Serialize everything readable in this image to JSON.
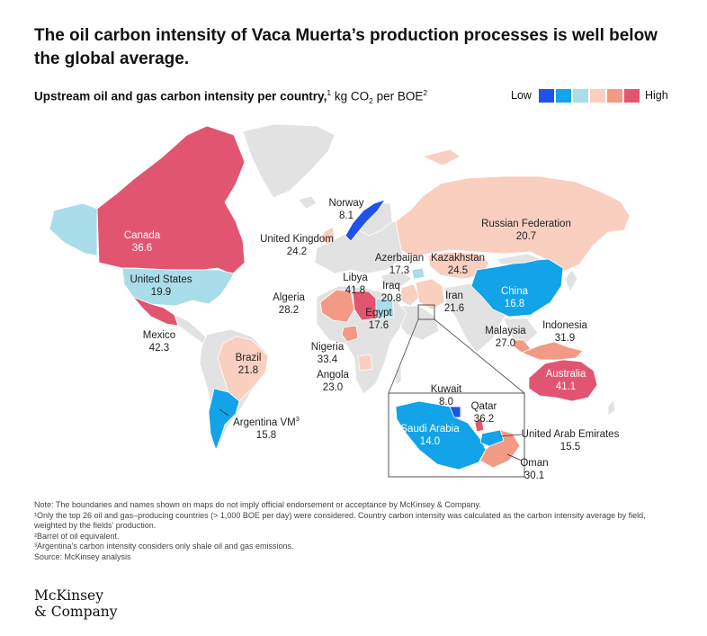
{
  "title": "The oil carbon intensity of Vaca Muerta’s production processes is well below the global average.",
  "subtitle": {
    "main": "Upstream oil and gas carbon intensity per country,",
    "fn": "1",
    "unit_a": " kg CO",
    "unit_sub": "2",
    "unit_b": " per BOE",
    "unit_fn": "2"
  },
  "legend": {
    "low": "Low",
    "high": "High",
    "colors": [
      "#2052e8",
      "#12a3e8",
      "#a8dde9",
      "#f9cfc0",
      "#f29a86",
      "#e25570"
    ]
  },
  "palette": {
    "base": "#e2e2e2",
    "border": "#ffffff"
  },
  "countries": [
    {
      "name": "Norway",
      "value": "8.1",
      "color": "#2052e8"
    },
    {
      "name": "Canada",
      "value": "36.6",
      "color": "#e25570"
    },
    {
      "name": "United Kingdom",
      "value": "24.2",
      "color": "#f9cfc0"
    },
    {
      "name": "Russian Federation",
      "value": "20.7",
      "color": "#f9cfc0"
    },
    {
      "name": "Azerbaijan",
      "value": "17.3",
      "color": "#a8dde9"
    },
    {
      "name": "Kazakhstan",
      "value": "24.5",
      "color": "#f9cfc0"
    },
    {
      "name": "United States",
      "value": "19.9",
      "color": "#a8dde9"
    },
    {
      "name": "Libya",
      "value": "41.8",
      "color": "#e25570"
    },
    {
      "name": "Iraq",
      "value": "20.8",
      "color": "#f9cfc0"
    },
    {
      "name": "Iran",
      "value": "21.6",
      "color": "#f9cfc0"
    },
    {
      "name": "China",
      "value": "16.8",
      "color": "#12a3e8"
    },
    {
      "name": "Algeria",
      "value": "28.2",
      "color": "#f29a86"
    },
    {
      "name": "Egypt",
      "value": "17.6",
      "color": "#a8dde9"
    },
    {
      "name": "Mexico",
      "value": "42.3",
      "color": "#e25570"
    },
    {
      "name": "Indonesia",
      "value": "31.9",
      "color": "#f29a86"
    },
    {
      "name": "Malaysia",
      "value": "27.0",
      "color": "#f29a86"
    },
    {
      "name": "Nigeria",
      "value": "33.4",
      "color": "#f29a86"
    },
    {
      "name": "Brazil",
      "value": "21.8",
      "color": "#f9cfc0"
    },
    {
      "name": "Angola",
      "value": "23.0",
      "color": "#f9cfc0"
    },
    {
      "name": "Australia",
      "value": "41.1",
      "color": "#e25570"
    },
    {
      "name": "Kuwait",
      "value": "8.0",
      "color": "#2052e8"
    },
    {
      "name": "Qatar",
      "value": "36.2",
      "color": "#e25570"
    },
    {
      "name": "Saudi Arabia",
      "value": "14.0",
      "color": "#12a3e8"
    },
    {
      "name": "United Arab Emirates",
      "value": "15.5",
      "color": "#12a3e8"
    },
    {
      "name": "Oman",
      "value": "30.1",
      "color": "#f29a86"
    },
    {
      "name": "Argentina VM",
      "fn": "3",
      "value": "15.8",
      "color": "#12a3e8"
    }
  ],
  "notes": [
    "Note: The boundaries and names shown on maps do not imply official endorsement or acceptance by McKinsey & Company.",
    "¹Only the top 26 oil and gas–producing countries (> 1,000 BOE per day) were considered. Country carbon intensity was calculated as the carbon intensity average by field, weighted by the fields’ production.",
    "²Barrel of oil equivalent.",
    "³Argentina’s carbon intensity considers only shale oil and gas emissions.",
    "Source: McKinsey analysis"
  ],
  "logo": {
    "line1": "McKinsey",
    "line2": "& Company"
  }
}
